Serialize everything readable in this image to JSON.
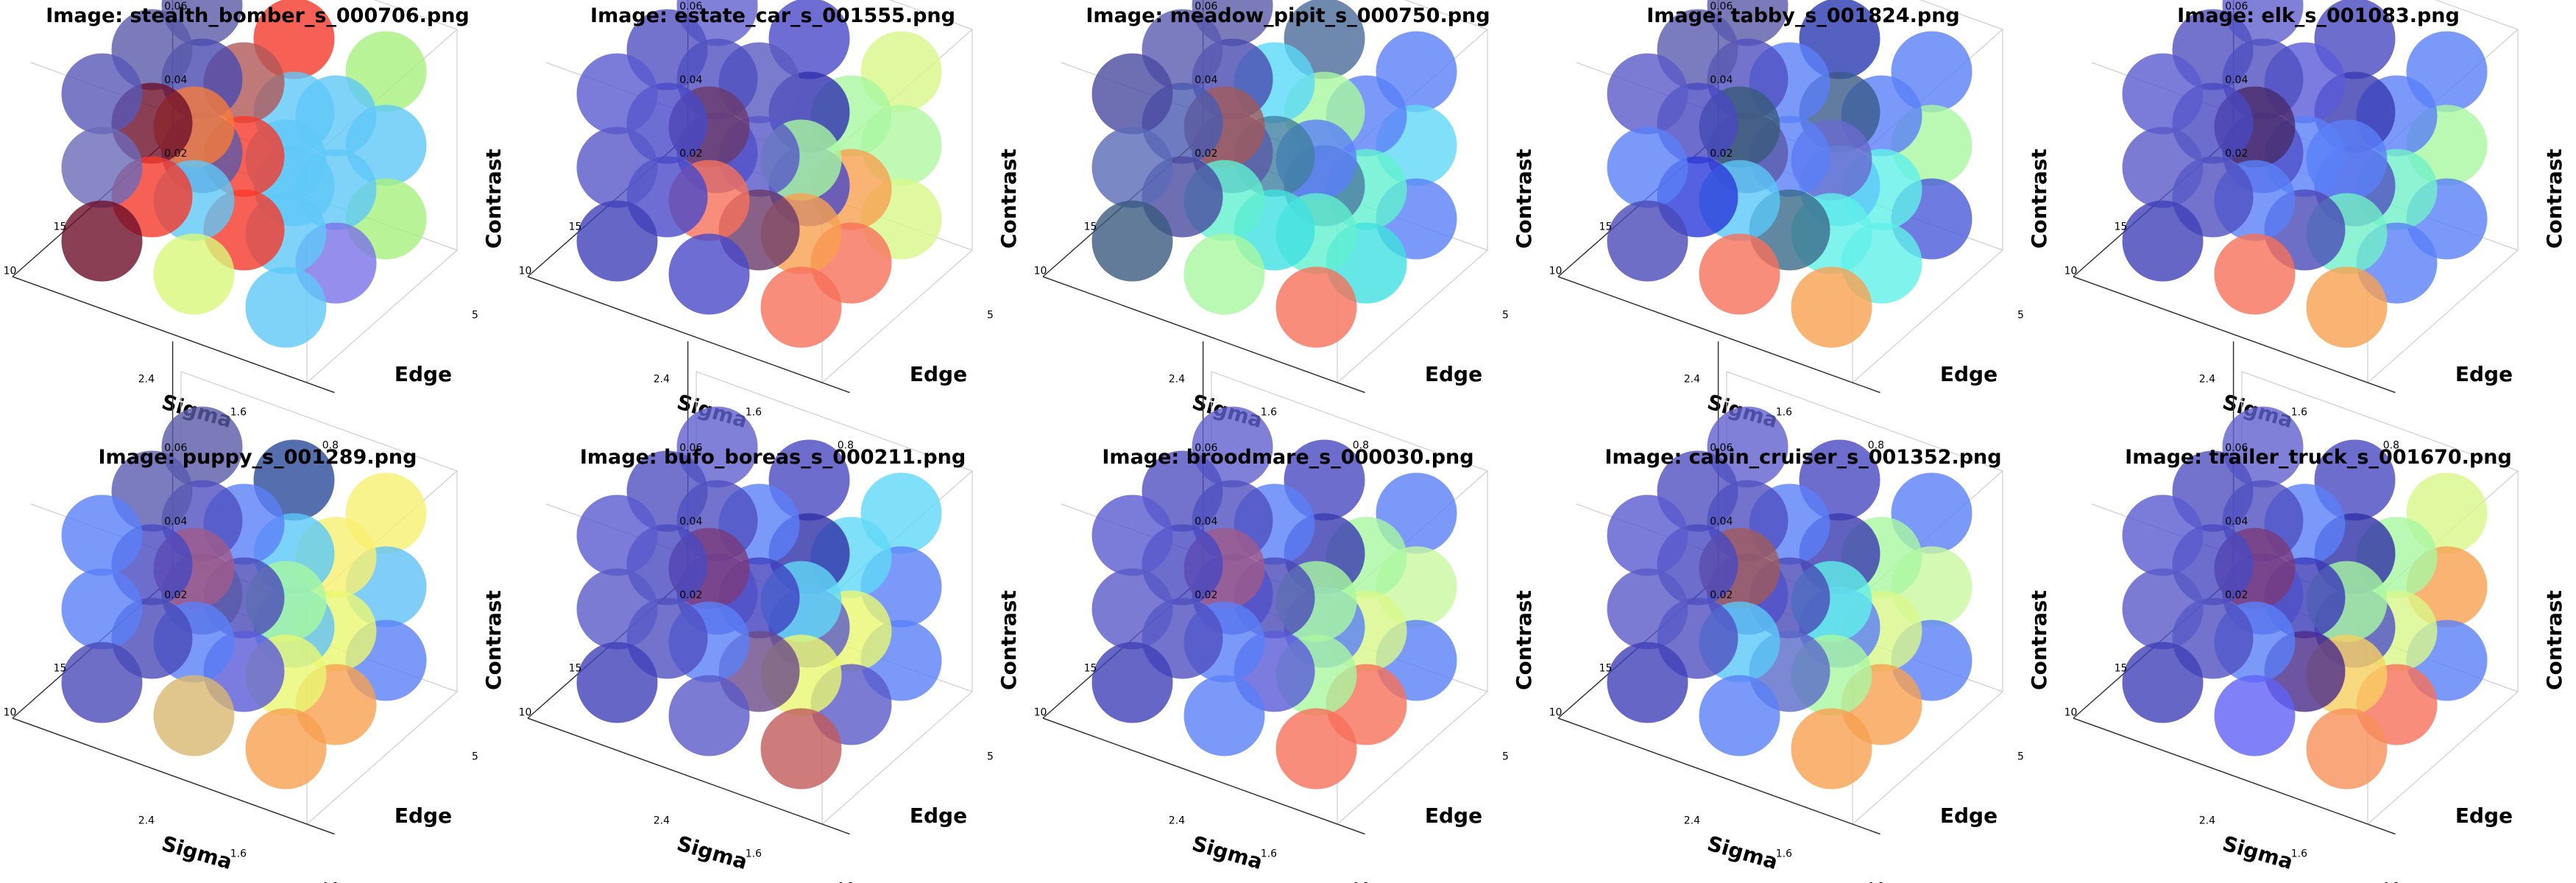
{
  "chart_data": {
    "type": "scatter",
    "subtype": "3d-bubble",
    "grid": true,
    "axes": {
      "x": {
        "label": "Sigma",
        "ticks": [
          0.8,
          1.6,
          2.4
        ],
        "range": [
          0.8,
          2.4
        ]
      },
      "y": {
        "label": "Edge",
        "ticks": [
          5,
          10,
          15
        ],
        "range": [
          5,
          15
        ]
      },
      "z": {
        "label": "Contrast",
        "ticks": [
          0.02,
          0.04,
          0.06
        ],
        "range": [
          0.02,
          0.06
        ]
      }
    },
    "panels": [
      {
        "title": "Image: stealth_bomber_s_000706.png",
        "colors": [
          [
            "#5fc8f8",
            "#5fc8f8",
            "#5fc8f8",
            "#7b72e8",
            "#5fc8f8",
            "#5fc8f8",
            "#a8f07e",
            "#5fc8f8",
            "#a8f07e",
            "#d8f87a",
            "#5fc8f8",
            "#f87a3a",
            "#f53a2a",
            "#f53a2a",
            "#b05858",
            "#5fc8f8",
            "#5fc8f8",
            "#f53a2a",
            "#6e0f2a",
            "#6a6ab8",
            "#5858b8",
            "#f53a2a",
            "#6e0f2a",
            "#5a5aaa",
            "#5a5aa8",
            "#4a4ab0",
            "#5a5aa8"
          ],
          []
        ]
      },
      {
        "title": "Image: estate_car_s_001555.png",
        "colors": [
          [
            "#f8705a",
            "#f8a050",
            "#a8f8a0",
            "#f8705a",
            "#f8a050",
            "#a8f8a0",
            "#d8f88a",
            "#b0f8a0",
            "#d8f88a",
            "#4848c8",
            "#f8705a",
            "#6a3a6a",
            "#6a3a6a",
            "#5858c8",
            "#5a5ac0",
            "#4848c8",
            "#3030b0",
            "#4848c8",
            "#4040b8",
            "#5858c8",
            "#5a5ad0",
            "#4848c8",
            "#4848c8",
            "#5050c0",
            "#5050c8",
            "#5050c0",
            "#6060d0"
          ],
          []
        ]
      },
      {
        "title": "Image: meadow_pipit_s_000750.png",
        "colors": [
          [
            "#f8705a",
            "#60f0d0",
            "#5a80f8",
            "#40e0e0",
            "#60f0d0",
            "#5a80f8",
            "#5a80f8",
            "#60d8f8",
            "#5a80f8",
            "#a8f8a0",
            "#60f0d0",
            "#a05a5a",
            "#40e0e0",
            "#4080a0",
            "#5ad8f8",
            "#4a7aa0",
            "#a8f8a0",
            "#4a6a9a",
            "#3a5a80",
            "#5a6ab8",
            "#4a4aa0",
            "#4a4aa0",
            "#4a5ab0",
            "#5a5ab0",
            "#5a5aa8",
            "#4a4ab0",
            "#5a5aa8"
          ],
          []
        ]
      },
      {
        "title": "Image: tabby_s_001824.png",
        "colors": [
          [
            "#f8a050",
            "#60f0e8",
            "#6a6ad0",
            "#60f0e8",
            "#60f0e8",
            "#5a80f8",
            "#4a5ad8",
            "#a8f8a0",
            "#5a80f8",
            "#f8705a",
            "#5ac8f8",
            "#3a5a7a",
            "#3a6a8a",
            "#5a80f8",
            "#5a80f8",
            "#5ac8f8",
            "#3a5a8a",
            "#2a3ab0",
            "#4a4ab8",
            "#5a80f8",
            "#5a5ac8",
            "#2a3ad8",
            "#4848c0",
            "#5a5ab0",
            "#5a5aa8",
            "#5050c0",
            "#5a5aa8"
          ],
          []
        ]
      },
      {
        "title": "Image: elk_s_001083.png",
        "colors": [
          [
            "#f8a050",
            "#70f0c8",
            "#5a80f8",
            "#5a80f8",
            "#70f0c8",
            "#5a80f8",
            "#5a80f8",
            "#a8f8a0",
            "#5a80f8",
            "#f8705a",
            "#5a80f8",
            "#4a2a6a",
            "#4a4ab8",
            "#5a80f8",
            "#5a5ad8",
            "#5050c0",
            "#3a3ab0",
            "#4848c0",
            "#4040b8",
            "#5a5ac8",
            "#5a5ad0",
            "#5050c0",
            "#4848c0",
            "#5050c0",
            "#5050c8",
            "#5050c0",
            "#6060d0"
          ],
          []
        ]
      },
      {
        "title": "Image: puppy_s_001289.png",
        "colors": [
          [
            "#f8a050",
            "#e8f870",
            "#a8f8a0",
            "#f8a050",
            "#e8f870",
            "#f8f070",
            "#5a80f8",
            "#60c0f8",
            "#f8f070",
            "#d8b870",
            "#5a80f8",
            "#a05a8a",
            "#5a5ad8",
            "#4a4ab8",
            "#5a80f8",
            "#60c0f8",
            "#5ac8f8",
            "#2a4a9a",
            "#4a4ab8",
            "#5a80f8",
            "#5a80f8",
            "#4a4ab8",
            "#4848c0",
            "#5a5ab0",
            "#5a5aa8",
            "#5050c0",
            "#5a5aa8"
          ],
          []
        ]
      },
      {
        "title": "Image: bufo_boreas_s_000211.png",
        "colors": [
          [
            "#c05a5a",
            "#e8f870",
            "#60d8f8",
            "#5a5ac8",
            "#e8f870",
            "#60d8f8",
            "#5a80f8",
            "#5a80f8",
            "#60d8f8",
            "#5a5ac8",
            "#5a80f8",
            "#7a3a7a",
            "#6a4a8a",
            "#4040c0",
            "#5a80f8",
            "#5a5ac8",
            "#3030a8",
            "#4848c0",
            "#4040b8",
            "#5a5ac8",
            "#5a5ad0",
            "#5050c0",
            "#4848c0",
            "#5050c0",
            "#5050c8",
            "#5050c0",
            "#6060d0"
          ],
          []
        ]
      },
      {
        "title": "Image: broodmare_s_000030.png",
        "colors": [
          [
            "#f8705a",
            "#a8f8a0",
            "#a8f8a0",
            "#f8705a",
            "#d8f88a",
            "#a8f8a0",
            "#5a80f8",
            "#c8f8a0",
            "#5a80f8",
            "#5a80f8",
            "#5a80f8",
            "#a05a8a",
            "#5a5ad8",
            "#4a4ab8",
            "#5a80f8",
            "#5a80f8",
            "#3a3ab0",
            "#4848c0",
            "#4040b8",
            "#5a5ac8",
            "#5a5ad0",
            "#5050c0",
            "#4848c0",
            "#5050c0",
            "#5050c8",
            "#5050c0",
            "#6060d0"
          ],
          []
        ]
      },
      {
        "title": "Image: cabin_cruiser_s_001352.png",
        "colors": [
          [
            "#f8a050",
            "#a8f8a0",
            "#60f0e8",
            "#f8a050",
            "#d8f88a",
            "#a8f8a0",
            "#5a80f8",
            "#c8f8a0",
            "#5a80f8",
            "#5a80f8",
            "#5ac8f8",
            "#a05a5a",
            "#5a6ac8",
            "#4a4ab8",
            "#5a80f8",
            "#5a80f8",
            "#3a3ab0",
            "#4848c0",
            "#4040b8",
            "#5a5ac8",
            "#5a5ad0",
            "#5050c0",
            "#4848c0",
            "#5050c0",
            "#5050c8",
            "#5050c0",
            "#6060d0"
          ],
          []
        ]
      },
      {
        "title": "Image: trailer_truck_s_001670.png",
        "colors": [
          [
            "#f8905a",
            "#f8d060",
            "#a8f8a0",
            "#f8705a",
            "#d8f88a",
            "#a8f8a0",
            "#5a80f8",
            "#f8a050",
            "#d8f88a",
            "#6060f8",
            "#5a80f8",
            "#7a3a7a",
            "#4a2a8a",
            "#3a3ab8",
            "#5a80f8",
            "#5050c8",
            "#3030a8",
            "#4848c0",
            "#4040b8",
            "#5a5ac8",
            "#5a5ad0",
            "#5050c0",
            "#4848c0",
            "#5050c0",
            "#5050c8",
            "#5050c0",
            "#6060d0"
          ],
          []
        ]
      }
    ]
  }
}
